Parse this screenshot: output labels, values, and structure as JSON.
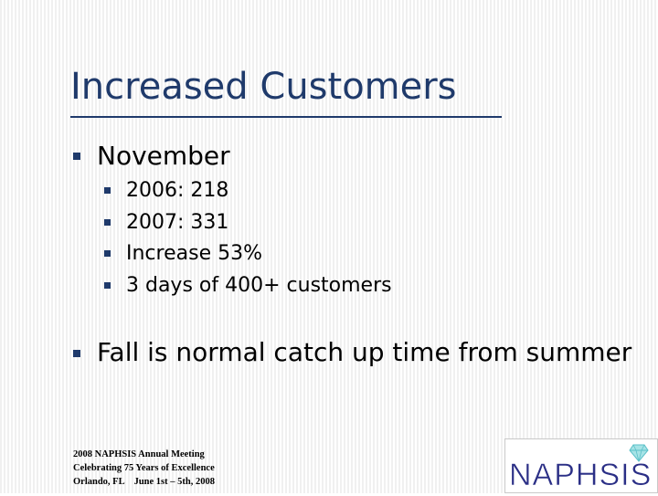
{
  "slide": {
    "title": "Increased Customers",
    "bullets": [
      {
        "text": "November",
        "sub": [
          "2006: 218",
          "2007: 331",
          "Increase 53%",
          "3 days of 400+ customers"
        ]
      },
      {
        "text": "Fall is normal catch up time from summer"
      }
    ],
    "footer": {
      "line1": "2008 NAPHSIS Annual Meeting",
      "line2": "Celebrating 75 Years of Excellence",
      "line3_left": "Orlando, FL",
      "line3_right": "June 1st – 5th, 2008"
    },
    "logo_text": "NAPHSIS",
    "colors": {
      "accent": "#1f3a6b",
      "logo_text": "#2b2f86",
      "logo_gem": "#5bc0c8"
    }
  }
}
